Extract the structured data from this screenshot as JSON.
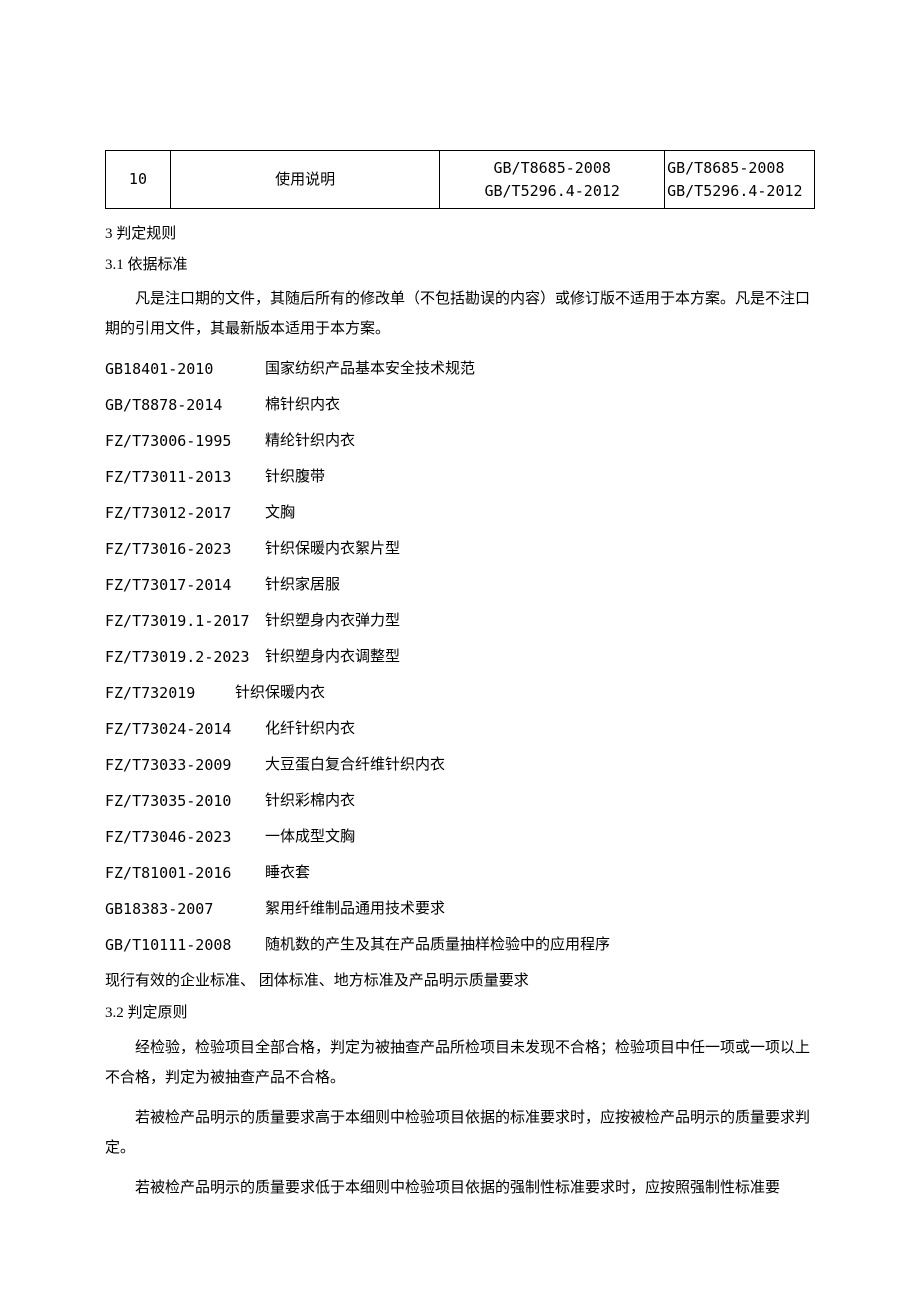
{
  "table": {
    "row_no": "10",
    "item": "使用说明",
    "col3_line1": "GB/T8685-2008",
    "col3_line2": "GB/T5296.4-2012",
    "col4_line1": "GB/T8685-2008",
    "col4_line2": "GB/T5296.4-2012"
  },
  "section3": {
    "heading": "3 判定规则",
    "sub1_heading": "3.1 依据标准",
    "sub1_para": "凡是注口期的文件，其随后所有的修改单（不包括勘误的内容）或修订版不适用于本方案。凡是不注口期的引用文件，其最新版本适用于本方案。",
    "standards": [
      {
        "code": "GB18401-2010",
        "name": "国家纺织产品基本安全技术规范"
      },
      {
        "code": "GB/T8878-2014",
        "name": "棉针织内衣"
      },
      {
        "code": "FZ/T73006-1995",
        "name": "精纶针织内衣"
      },
      {
        "code": "FZ/T73011-2013",
        "name": "针织腹带"
      },
      {
        "code": "FZ/T73012-2017",
        "name": "文胸"
      },
      {
        "code": "FZ/T73016-2023",
        "name": "针织保暖内衣絮片型"
      },
      {
        "code": "FZ/T73017-2014",
        "name": "针织家居服"
      },
      {
        "code": "FZ/T73019.1-2017",
        "name": "针织塑身内衣弹力型"
      },
      {
        "code": "FZ/T73019.2-2023",
        "name": "针织塑身内衣调整型"
      },
      {
        "code": "FZ/T732019",
        "name": "针织保暖内衣",
        "narrow": true
      },
      {
        "code": "FZ/T73024-2014",
        "name": "化纤针织内衣"
      },
      {
        "code": "FZ/T73033-2009",
        "name": "大豆蛋白复合纤维针织内衣"
      },
      {
        "code": "FZ/T73035-2010",
        "name": "针织彩棉内衣"
      },
      {
        "code": "FZ/T73046-2023",
        "name": "一体成型文胸"
      },
      {
        "code": "FZ/T81001-2016",
        "name": "睡衣套"
      },
      {
        "code": "GB18383-2007",
        "name": "絮用纤维制品通用技术要求"
      },
      {
        "code": "GB/T10111-2008",
        "name": "随机数的产生及其在产品质量抽样检验中的应用程序"
      }
    ],
    "note": "现行有效的企业标准、 团体标准、地方标准及产品明示质量要求",
    "sub2_heading": "3.2 判定原则",
    "sub2_para1": "经检验，检验项目全部合格，判定为被抽查产品所检项目未发现不合格；检验项目中任一项或一项以上不合格，判定为被抽查产品不合格。",
    "sub2_para2": "若被检产品明示的质量要求高于本细则中检验项目依据的标准要求时，应按被检产品明示的质量要求判定。",
    "sub2_para3": "若被检产品明示的质量要求低于本细则中检验项目依据的强制性标准要求时，应按照强制性标准要"
  }
}
